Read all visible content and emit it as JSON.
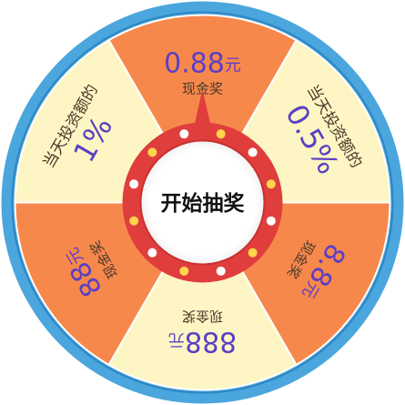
{
  "wheel": {
    "center_button_label": "开始抽奖",
    "colors": {
      "outer_rim": "#4aa6dc",
      "outer_rim_dark": "#2e86c4",
      "inner_rim": "#e9f3f9",
      "segment_light": "#fdf6c4",
      "segment_orange": "#f7884c",
      "divider": "#ffffff",
      "amount_text": "#5a3fc4",
      "caption_text": "#4a3a2a",
      "hub_ring": "#e03d3d",
      "hub_center": "#ffffff",
      "hub_dot_yellow": "#ffd54a",
      "hub_dot_white": "#ffffff"
    },
    "segments": [
      {
        "amount": "0.88",
        "unit": "元",
        "caption": "现金奖",
        "color": "segment_orange"
      },
      {
        "amount": "0.5%",
        "unit": "",
        "caption": "当天投资额的",
        "color": "segment_light"
      },
      {
        "amount": "8.8",
        "unit": "元",
        "caption": "现金奖",
        "color": "segment_orange"
      },
      {
        "amount": "888",
        "unit": "元",
        "caption": "现金奖",
        "color": "segment_light"
      },
      {
        "amount": "88",
        "unit": "元",
        "caption": "现金奖",
        "color": "segment_orange"
      },
      {
        "amount": "1%",
        "unit": "",
        "caption": "当天投资额的",
        "color": "segment_light"
      }
    ]
  }
}
